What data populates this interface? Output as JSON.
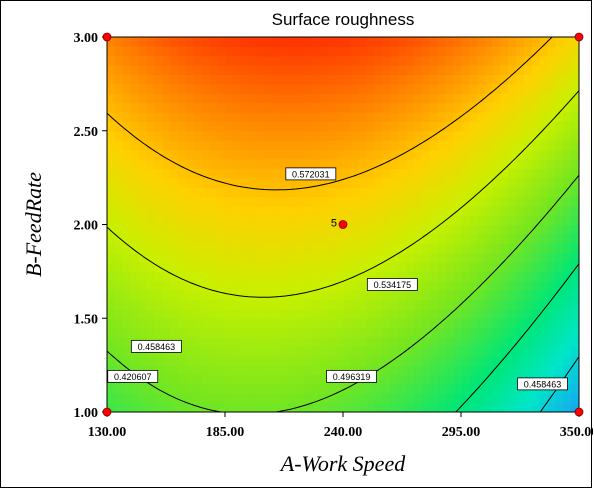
{
  "chart_data": {
    "type": "contour",
    "title": "Surface roughness",
    "xlabel": "A-Work Speed",
    "ylabel": "B-FeedRate",
    "xlim": [
      130,
      350
    ],
    "ylim": [
      1.0,
      3.0
    ],
    "x_ticks": [
      "130.00",
      "185.00",
      "240.00",
      "295.00",
      "350.00"
    ],
    "y_ticks": [
      "1.00",
      "1.50",
      "2.00",
      "2.50",
      "3.00"
    ],
    "contours": [
      {
        "label": "0.420607",
        "level": 0.420607,
        "label_at": [
          142,
          1.19
        ]
      },
      {
        "label": "0.458463",
        "level": 0.458463,
        "label_at": [
          153,
          1.35
        ]
      },
      {
        "label": "0.458463",
        "level": 0.458463,
        "label_at": [
          333,
          1.15
        ]
      },
      {
        "label": "0.496319",
        "level": 0.496319,
        "label_at": [
          244,
          1.19
        ]
      },
      {
        "label": "0.534175",
        "level": 0.534175,
        "label_at": [
          263,
          1.68
        ]
      },
      {
        "label": "0.572031",
        "level": 0.572031,
        "label_at": [
          225,
          2.27
        ]
      }
    ],
    "design_points": [
      {
        "x": 130,
        "y": 1.0
      },
      {
        "x": 130,
        "y": 3.0
      },
      {
        "x": 350,
        "y": 1.0
      },
      {
        "x": 350,
        "y": 3.0
      },
      {
        "x": 240,
        "y": 2.0,
        "label": "5"
      }
    ],
    "colors": {
      "low": "#1e90ff",
      "mid_low": "#00e676",
      "mid": "#9be81a",
      "mid_high": "#ffd000",
      "high": "#ff1a00",
      "contour_line": "#000000",
      "point": "#ff0000"
    }
  }
}
